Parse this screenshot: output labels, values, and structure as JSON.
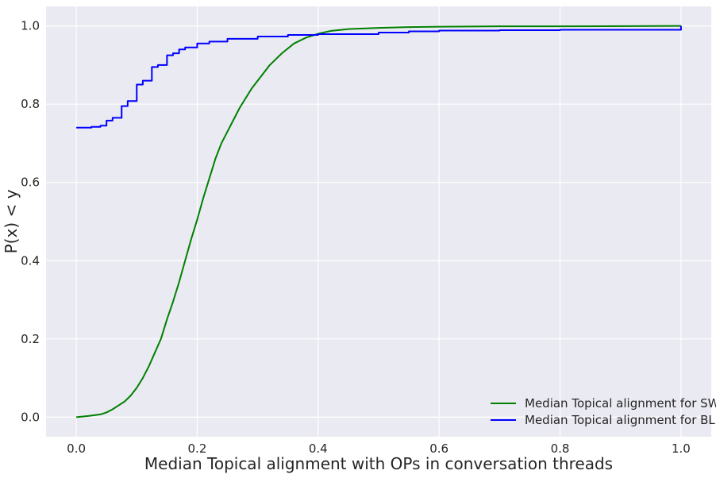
{
  "chart_data": {
    "type": "line",
    "title": "",
    "xlabel": "Median Topical alignment with OPs in conversation threads",
    "ylabel": "P(x) < y",
    "xlim": [
      -0.05,
      1.05
    ],
    "ylim": [
      -0.05,
      1.05
    ],
    "xticks": [
      0.0,
      0.2,
      0.4,
      0.6,
      0.8,
      1.0
    ],
    "yticks": [
      0.0,
      0.2,
      0.4,
      0.6,
      0.8,
      1.0
    ],
    "xtick_labels": [
      "0.0",
      "0.2",
      "0.4",
      "0.6",
      "0.8",
      "1.0"
    ],
    "ytick_labels": [
      "0.0",
      "0.2",
      "0.4",
      "0.6",
      "0.8",
      "1.0"
    ],
    "grid": true,
    "legend_position": "bottom-right",
    "series": [
      {
        "name": "Median Topical alignment for SW",
        "color": "#008000",
        "step": false,
        "x": [
          0.0,
          0.02,
          0.04,
          0.05,
          0.06,
          0.07,
          0.08,
          0.09,
          0.1,
          0.11,
          0.12,
          0.13,
          0.14,
          0.15,
          0.16,
          0.17,
          0.18,
          0.19,
          0.2,
          0.21,
          0.22,
          0.23,
          0.24,
          0.25,
          0.26,
          0.27,
          0.28,
          0.29,
          0.3,
          0.32,
          0.34,
          0.36,
          0.38,
          0.4,
          0.42,
          0.45,
          0.5,
          0.55,
          0.6,
          0.7,
          0.8,
          1.0
        ],
        "y": [
          0.0,
          0.003,
          0.007,
          0.012,
          0.02,
          0.03,
          0.04,
          0.055,
          0.075,
          0.1,
          0.13,
          0.165,
          0.2,
          0.25,
          0.295,
          0.345,
          0.4,
          0.455,
          0.505,
          0.56,
          0.61,
          0.66,
          0.7,
          0.73,
          0.76,
          0.79,
          0.815,
          0.84,
          0.86,
          0.9,
          0.93,
          0.955,
          0.97,
          0.98,
          0.987,
          0.992,
          0.995,
          0.997,
          0.998,
          0.999,
          0.999,
          1.0
        ]
      },
      {
        "name": "Median Topical alignment for BL",
        "color": "#0000ff",
        "step": true,
        "x": [
          0.0,
          0.025,
          0.04,
          0.05,
          0.06,
          0.075,
          0.085,
          0.1,
          0.11,
          0.125,
          0.135,
          0.15,
          0.16,
          0.17,
          0.18,
          0.2,
          0.22,
          0.25,
          0.3,
          0.35,
          0.4,
          0.5,
          0.55,
          0.6,
          0.7,
          0.8,
          1.0
        ],
        "y": [
          0.74,
          0.742,
          0.745,
          0.758,
          0.765,
          0.795,
          0.808,
          0.85,
          0.86,
          0.895,
          0.9,
          0.925,
          0.93,
          0.94,
          0.945,
          0.955,
          0.96,
          0.967,
          0.973,
          0.977,
          0.979,
          0.983,
          0.986,
          0.988,
          0.989,
          0.99,
          1.0
        ]
      }
    ]
  }
}
